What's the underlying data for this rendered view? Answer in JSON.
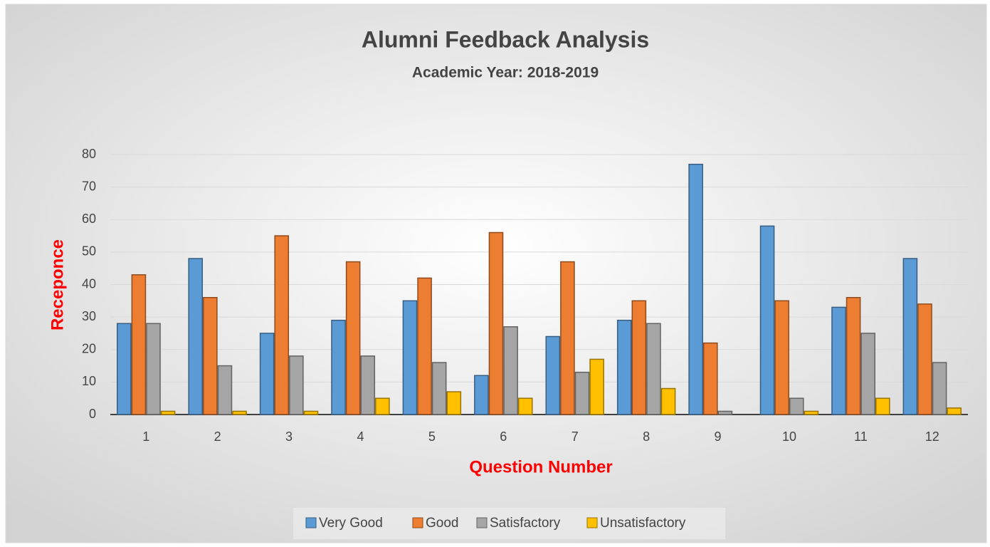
{
  "chart_data": {
    "type": "bar",
    "title": "Alumni Feedback Analysis",
    "subtitle": "Academic Year: 2018-2019",
    "x_label": "Question Number",
    "y_label": "Receponce",
    "categories": [
      "1",
      "2",
      "3",
      "4",
      "5",
      "6",
      "7",
      "8",
      "9",
      "10",
      "11",
      "12"
    ],
    "series": [
      {
        "name": "Very Good",
        "color": "#5b9bd5",
        "values": [
          28,
          48,
          25,
          29,
          35,
          12,
          24,
          29,
          77,
          58,
          33,
          48
        ]
      },
      {
        "name": "Good",
        "color": "#ed7d31",
        "values": [
          43,
          36,
          55,
          47,
          42,
          56,
          47,
          35,
          22,
          35,
          36,
          34
        ]
      },
      {
        "name": "Satisfactory",
        "color": "#a5a5a5",
        "values": [
          28,
          15,
          18,
          18,
          16,
          27,
          13,
          28,
          1,
          5,
          25,
          16
        ]
      },
      {
        "name": "Unsatisfactory",
        "color": "#ffc000",
        "values": [
          1,
          1,
          1,
          5,
          7,
          5,
          17,
          8,
          0,
          1,
          5,
          2
        ]
      }
    ],
    "ylim": [
      0,
      80
    ],
    "yticks": [
      0,
      10,
      20,
      30,
      40,
      50,
      60,
      70,
      80
    ],
    "grid": true,
    "legend": "bottom"
  }
}
